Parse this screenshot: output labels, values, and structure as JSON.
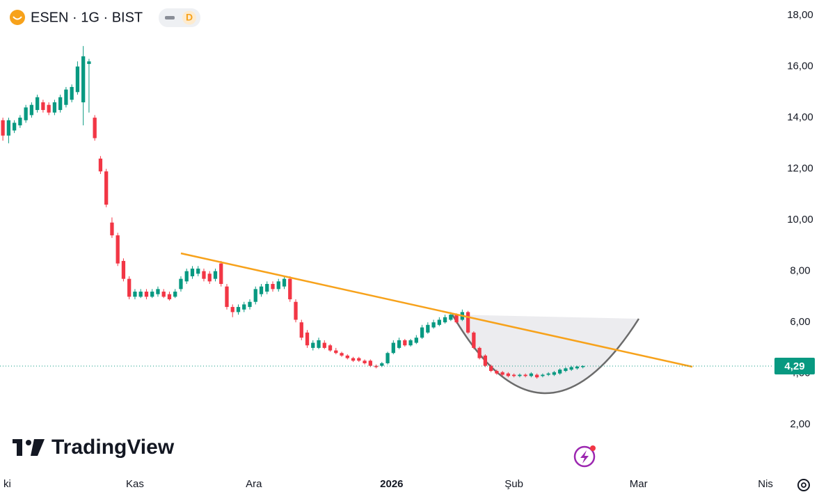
{
  "chart_data": {
    "type": "candlestick",
    "title": "ESEN · 1G · BIST",
    "badge": "D",
    "watermark": "TradingView",
    "up_color": "#089981",
    "down_color": "#f23645",
    "grid": false,
    "open": [
      13.9,
      13.3,
      13.5,
      13.7,
      13.9,
      14.1,
      14.3,
      14.6,
      14.5,
      14.2,
      14.3,
      14.5,
      14.7,
      15.0,
      14.6,
      16.1,
      14.0,
      12.4,
      11.9,
      9.9,
      9.4,
      8.4,
      7.7,
      7.0,
      7.0,
      7.2,
      7.0,
      7.1,
      7.2,
      7.1,
      7.0,
      7.3,
      7.6,
      7.8,
      7.9,
      8.0,
      7.9,
      7.7,
      8.3,
      7.4,
      6.6,
      6.4,
      6.5,
      6.6,
      6.8,
      7.1,
      7.2,
      7.5,
      7.3,
      7.4,
      7.7,
      6.8,
      6.0,
      5.6,
      5.0,
      5.0,
      5.2,
      5.1,
      4.9,
      4.8,
      4.7,
      4.6,
      4.6,
      4.5,
      4.5,
      4.3,
      4.3,
      4.4,
      4.8,
      5.0,
      5.3,
      5.1,
      5.2,
      5.4,
      5.6,
      5.8,
      5.9,
      6.0,
      6.1,
      6.3,
      6.1,
      6.4,
      5.6,
      5.0,
      4.7,
      4.3,
      4.1,
      4.05,
      4.0,
      3.95,
      3.9,
      3.95,
      3.9,
      3.95,
      3.9,
      3.95,
      3.95,
      4.0,
      4.1,
      4.15,
      4.2,
      4.25
    ],
    "high": [
      14.0,
      14.0,
      13.9,
      14.1,
      14.5,
      14.6,
      14.9,
      14.7,
      14.6,
      14.7,
      14.9,
      15.2,
      15.3,
      16.2,
      16.8,
      16.3,
      14.1,
      12.5,
      12.0,
      10.1,
      9.5,
      8.5,
      7.8,
      7.3,
      7.3,
      7.3,
      7.3,
      7.4,
      7.3,
      7.2,
      7.3,
      7.8,
      8.1,
      8.2,
      8.2,
      8.1,
      8.0,
      8.1,
      8.4,
      7.5,
      6.7,
      6.7,
      6.8,
      6.9,
      7.4,
      7.5,
      7.6,
      7.6,
      7.7,
      7.8,
      7.8,
      6.9,
      6.1,
      5.7,
      5.3,
      5.4,
      5.3,
      5.15,
      5.0,
      4.85,
      4.75,
      4.65,
      4.65,
      4.55,
      4.55,
      4.35,
      4.45,
      4.85,
      5.3,
      5.4,
      5.35,
      5.35,
      5.5,
      5.9,
      6.0,
      6.1,
      6.2,
      6.3,
      6.4,
      6.35,
      6.5,
      6.45,
      5.65,
      5.05,
      4.75,
      4.35,
      4.15,
      4.1,
      4.05,
      4.0,
      4.0,
      4.0,
      4.05,
      4.0,
      4.0,
      4.05,
      4.1,
      4.2,
      4.25,
      4.3,
      4.3,
      4.32
    ],
    "low": [
      13.1,
      13.0,
      13.4,
      13.6,
      13.8,
      14.0,
      14.2,
      14.2,
      14.1,
      14.1,
      14.2,
      14.4,
      14.6,
      14.9,
      13.7,
      14.2,
      13.1,
      11.8,
      10.5,
      9.3,
      8.2,
      7.6,
      6.9,
      6.9,
      6.95,
      6.9,
      6.95,
      7.0,
      6.95,
      6.85,
      6.95,
      7.2,
      7.5,
      7.7,
      7.8,
      7.6,
      7.5,
      7.6,
      7.4,
      6.5,
      6.2,
      6.3,
      6.4,
      6.5,
      6.7,
      7.0,
      7.1,
      7.2,
      7.2,
      7.3,
      6.8,
      6.0,
      5.3,
      5.0,
      4.9,
      4.95,
      4.95,
      4.85,
      4.75,
      4.65,
      4.55,
      4.45,
      4.45,
      4.35,
      4.25,
      4.2,
      4.25,
      4.35,
      4.75,
      4.95,
      5.05,
      5.05,
      5.15,
      5.35,
      5.55,
      5.75,
      5.85,
      5.95,
      6.05,
      5.95,
      6.05,
      5.55,
      4.95,
      4.55,
      4.25,
      4.05,
      3.95,
      3.9,
      3.85,
      3.85,
      3.85,
      3.85,
      3.85,
      3.8,
      3.85,
      3.9,
      3.9,
      3.95,
      4.05,
      4.1,
      4.15,
      4.2
    ],
    "close": [
      13.3,
      13.9,
      13.8,
      14.0,
      14.4,
      14.5,
      14.8,
      14.3,
      14.2,
      14.6,
      14.8,
      15.1,
      15.2,
      16.0,
      16.4,
      16.2,
      13.2,
      11.9,
      10.6,
      9.4,
      8.3,
      7.7,
      7.0,
      7.2,
      7.2,
      7.0,
      7.2,
      7.3,
      7.0,
      6.9,
      7.2,
      7.7,
      8.0,
      8.1,
      8.1,
      7.7,
      7.6,
      8.0,
      7.5,
      6.6,
      6.4,
      6.6,
      6.7,
      6.8,
      7.3,
      7.4,
      7.5,
      7.3,
      7.6,
      7.7,
      6.9,
      6.1,
      5.4,
      5.1,
      5.2,
      5.3,
      5.0,
      4.9,
      4.8,
      4.7,
      4.6,
      4.5,
      4.5,
      4.4,
      4.3,
      4.25,
      4.4,
      4.8,
      5.2,
      5.3,
      5.1,
      5.3,
      5.4,
      5.8,
      5.9,
      6.0,
      6.1,
      6.2,
      6.3,
      6.0,
      6.4,
      5.6,
      5.0,
      4.6,
      4.3,
      4.1,
      4.0,
      3.95,
      3.9,
      3.9,
      3.95,
      3.9,
      4.0,
      3.85,
      3.95,
      4.0,
      4.05,
      4.15,
      4.2,
      4.25,
      4.27,
      4.29
    ],
    "xlim": [
      -0.5,
      134
    ],
    "xticks": [
      {
        "value": 0.1,
        "label": "ki"
      },
      {
        "value": 23,
        "label": "Kas"
      },
      {
        "value": 43.7,
        "label": "Ara"
      },
      {
        "value": 67.7,
        "label": "2026",
        "bold": true
      },
      {
        "value": 89,
        "label": "Şub"
      },
      {
        "value": 110.7,
        "label": "Mar"
      },
      {
        "value": 132.8,
        "label": "Nis"
      }
    ],
    "ylim": [
      0.1,
      18.6
    ],
    "yticks": [
      {
        "value": 2,
        "label": "2,00"
      },
      {
        "value": 4,
        "label": "4,00"
      },
      {
        "value": 6,
        "label": "6,00"
      },
      {
        "value": 8,
        "label": "8,00"
      },
      {
        "value": 10,
        "label": "10,00"
      },
      {
        "value": 12,
        "label": "12,00"
      },
      {
        "value": 14,
        "label": "14,00"
      },
      {
        "value": 16,
        "label": "16,00"
      },
      {
        "value": 18,
        "label": "18,00"
      }
    ],
    "last_price": {
      "value": 4.29,
      "label": "4,29"
    }
  }
}
